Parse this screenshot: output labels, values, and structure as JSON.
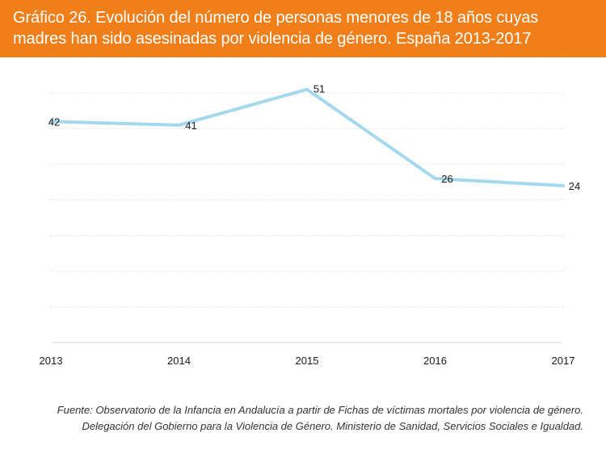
{
  "colors": {
    "header_bg": "#f07f1a",
    "line": "#a4d8ed",
    "grid": "#d6d6d6",
    "axis": "#d9d9d9",
    "text": "#1a1a1a"
  },
  "chart_data": {
    "type": "line",
    "title": "Gráfico 26. Evolución del número de personas menores de 18 años cuyas madres han sido asesinadas por violencia de género. España 2013-2017",
    "title_lines": [
      "Gráfico 26. Evolución del número de personas menores de 18 años cuyas",
      "madres han sido asesinadas por violencia de género. España 2013-2017"
    ],
    "categories": [
      "2013",
      "2014",
      "2015",
      "2016",
      "2017"
    ],
    "series": [
      {
        "name": "Personas menores de 18 años",
        "values": [
          42,
          41,
          51,
          26,
          24
        ],
        "labels": [
          "42",
          "41",
          "51",
          "26",
          "24"
        ]
      }
    ],
    "ylim": [
      -20,
      60
    ],
    "ygrid_step": 10,
    "grid": true,
    "xlabel": "",
    "ylabel": ""
  },
  "source": {
    "line1": "Fuente: Observatorio de la Infancia en Andalucía a partir de Fichas de víctimas mortales por violencia de género.",
    "line2": "Delegación del Gobierno para la Violencia de Género. Ministerio de Sanidad, Servicios Sociales e Igualdad."
  }
}
